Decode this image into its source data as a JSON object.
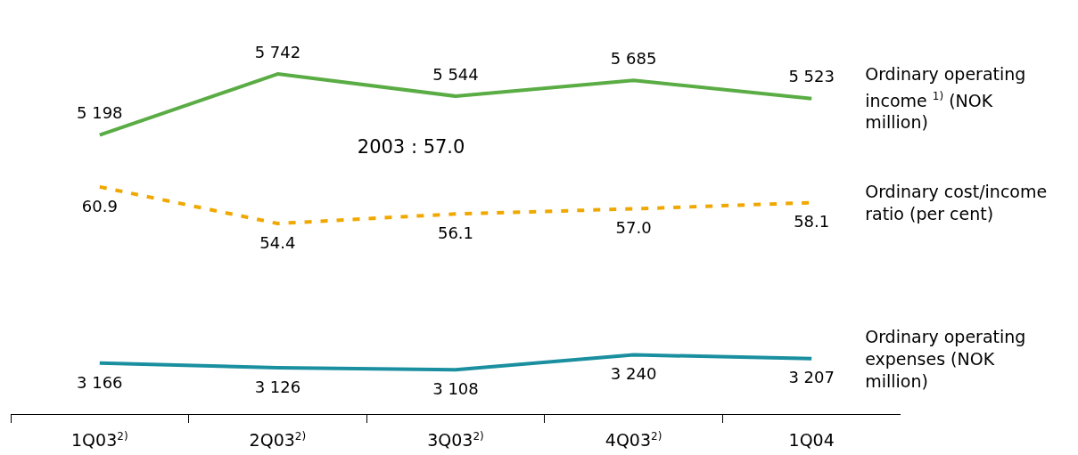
{
  "chart_data": {
    "type": "line",
    "categories": [
      "1Q03$^{2)}$",
      "2Q03$^{2)}$",
      "3Q03$^{2)}$",
      "4Q03$^{2)}$",
      "1Q04"
    ],
    "series": [
      {
        "name": "Ordinary operating income $^{1)}$ (NOK million)",
        "color": "#5aac44",
        "values": [
          5198,
          5742,
          5544,
          5685,
          5523
        ],
        "value_labels": [
          "5 198",
          "5 742",
          "5 544",
          "5 685",
          "5 523"
        ],
        "line_style": "solid"
      },
      {
        "name": "Ordinary cost/income ratio (per cent)",
        "color": "#f0a800",
        "axis": "y2",
        "values": [
          60.9,
          54.4,
          56.1,
          57.0,
          58.1
        ],
        "value_labels": [
          "60.9",
          "54.4",
          "56.1",
          "57.0",
          "58.1"
        ],
        "line_style": "dashed"
      },
      {
        "name": "Ordinary operating expenses (NOK million)",
        "color": "#1a8fa0",
        "values": [
          3166,
          3126,
          3108,
          3240,
          3207
        ],
        "value_labels": [
          "3 166",
          "3 126",
          "3 108",
          "3 240",
          "3 207"
        ],
        "line_style": "solid"
      }
    ],
    "tick_labels": "x",
    "legend": false,
    "marker": "none",
    "annotations": [
      "2003 : 57.0"
    ]
  }
}
